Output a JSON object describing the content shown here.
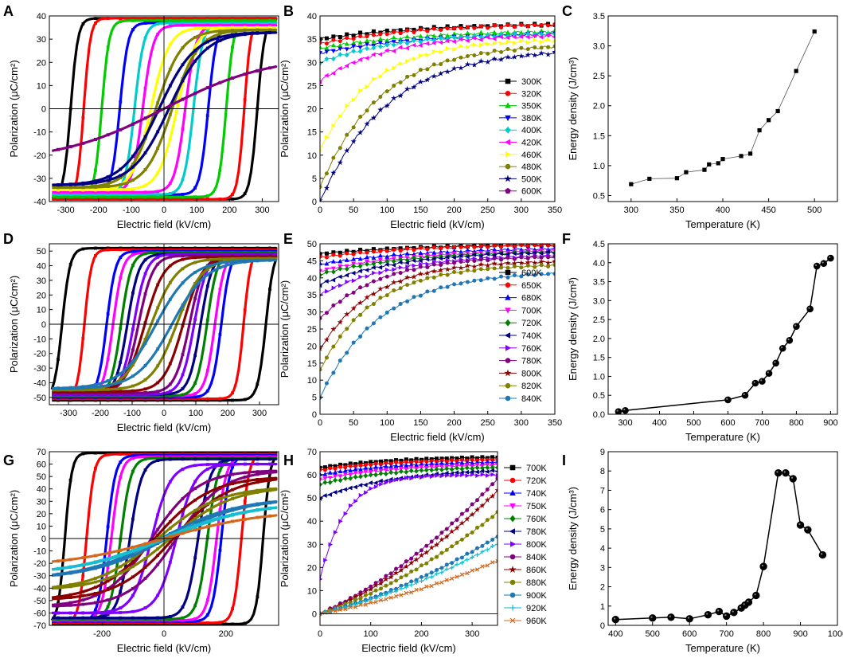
{
  "chart_data": [
    {
      "id": "A",
      "type": "line",
      "xlabel": "Electric field (kV/cm)",
      "ylabel": "Polarization (μC/cm²)",
      "xlim": [
        -350,
        350
      ],
      "ylim": [
        -40,
        40
      ],
      "xticks": [
        -300,
        -200,
        -100,
        0,
        100,
        200,
        300
      ],
      "yticks": [
        -40,
        -30,
        -20,
        -10,
        0,
        10,
        20,
        30,
        40
      ],
      "loops": [
        {
          "name": "300K",
          "color": "#000000",
          "Ec": 285,
          "Ps": 39,
          "Pr": 36,
          "k": 22
        },
        {
          "name": "320K",
          "color": "#ff0000",
          "Ec": 245,
          "Ps": 39,
          "Pr": 35,
          "k": 20
        },
        {
          "name": "350K",
          "color": "#00cc00",
          "Ec": 190,
          "Ps": 38,
          "Pr": 34,
          "k": 22
        },
        {
          "name": "380K",
          "color": "#0000ff",
          "Ec": 135,
          "Ps": 37,
          "Pr": 33,
          "k": 25
        },
        {
          "name": "400K",
          "color": "#00cccc",
          "Ec": 90,
          "Ps": 37,
          "Pr": 31,
          "k": 28
        },
        {
          "name": "420K",
          "color": "#ff00ff",
          "Ec": 65,
          "Ps": 36,
          "Pr": 28,
          "k": 32
        },
        {
          "name": "460K",
          "color": "#ffff00",
          "Ec": 40,
          "Ps": 35,
          "Pr": 20,
          "k": 55
        },
        {
          "name": "480K",
          "color": "#808000",
          "Ec": 25,
          "Ps": 34,
          "Pr": 12,
          "k": 80
        },
        {
          "name": "500K",
          "color": "#000080",
          "Ec": 15,
          "Ps": 33,
          "Pr": 6,
          "k": 110
        },
        {
          "name": "600K",
          "color": "#800080",
          "Ec": 0,
          "Ps": 23,
          "Pr": 0,
          "k": 320
        }
      ]
    },
    {
      "id": "B",
      "type": "line",
      "xlabel": "Electric field (kV/cm)",
      "ylabel": "Polarization (μC/cm²)",
      "xlim": [
        0,
        350
      ],
      "ylim": [
        0,
        40
      ],
      "xticks": [
        0,
        50,
        100,
        150,
        200,
        250,
        300,
        350
      ],
      "yticks": [
        0,
        5,
        10,
        15,
        20,
        25,
        30,
        35,
        40
      ],
      "series": [
        {
          "name": "300K",
          "color": "#000000",
          "marker": "square",
          "P0": 35,
          "Pmax": 38.5,
          "tau": 150
        },
        {
          "name": "320K",
          "color": "#ff0000",
          "marker": "circle",
          "P0": 34,
          "Pmax": 38.5,
          "tau": 150
        },
        {
          "name": "350K",
          "color": "#00cc00",
          "marker": "triangle-up",
          "P0": 33,
          "Pmax": 37,
          "tau": 150
        },
        {
          "name": "380K",
          "color": "#0000ff",
          "marker": "triangle-down",
          "P0": 32,
          "Pmax": 36.5,
          "tau": 150
        },
        {
          "name": "400K",
          "color": "#00cccc",
          "marker": "diamond",
          "P0": 30,
          "Pmax": 36.5,
          "tau": 120
        },
        {
          "name": "420K",
          "color": "#ff00ff",
          "marker": "triangle-left",
          "P0": 26,
          "Pmax": 36,
          "tau": 100
        },
        {
          "name": "460K",
          "color": "#ffff00",
          "marker": "triangle-right",
          "P0": 11,
          "Pmax": 35,
          "tau": 80
        },
        {
          "name": "480K",
          "color": "#808000",
          "marker": "circle",
          "P0": 3,
          "Pmax": 34,
          "tau": 90
        },
        {
          "name": "500K",
          "color": "#000080",
          "marker": "star",
          "P0": 0,
          "Pmax": 33,
          "tau": 100
        },
        {
          "name": "600K",
          "color": "#800080",
          "marker": "pentagon",
          "P0": null,
          "Pmax": null,
          "tau": null
        }
      ]
    },
    {
      "id": "C",
      "type": "line",
      "xlabel": "Temperature (K)",
      "ylabel": "Energy density (J/cm³)",
      "xlim": [
        275,
        525
      ],
      "ylim": [
        0.4,
        3.5
      ],
      "xticks": [
        300,
        350,
        400,
        450,
        500
      ],
      "yticks": [
        0.5,
        1.0,
        1.5,
        2.0,
        2.5,
        3.0,
        3.5
      ],
      "x": [
        300,
        320,
        350,
        360,
        380,
        385,
        395,
        400,
        420,
        430,
        440,
        450,
        460,
        480,
        500
      ],
      "y": [
        0.69,
        0.78,
        0.79,
        0.89,
        0.93,
        1.02,
        1.04,
        1.11,
        1.16,
        1.2,
        1.59,
        1.76,
        1.91,
        2.58,
        3.24
      ]
    },
    {
      "id": "D",
      "type": "line",
      "xlabel": "Electric field (kV/cm)",
      "ylabel": "Polarization (μC/cm²)",
      "xlim": [
        -360,
        360
      ],
      "ylim": [
        -55,
        55
      ],
      "xticks": [
        -300,
        -200,
        -100,
        0,
        100,
        200,
        300
      ],
      "yticks": [
        -50,
        -40,
        -30,
        -20,
        -10,
        0,
        10,
        20,
        30,
        40,
        50
      ],
      "loops": [
        {
          "name": "600K",
          "color": "#000000",
          "Ec": 320,
          "Ps": 52,
          "Pr": 46,
          "k": 25
        },
        {
          "name": "650K",
          "color": "#ff0000",
          "Ec": 250,
          "Ps": 51,
          "Pr": 45,
          "k": 22
        },
        {
          "name": "680K",
          "color": "#0000ff",
          "Ec": 180,
          "Ps": 50,
          "Pr": 43,
          "k": 28
        },
        {
          "name": "700K",
          "color": "#ff00ff",
          "Ec": 160,
          "Ps": 49,
          "Pr": 42,
          "k": 30
        },
        {
          "name": "720K",
          "color": "#008000",
          "Ec": 135,
          "Ps": 49,
          "Pr": 40,
          "k": 32
        },
        {
          "name": "740K",
          "color": "#000080",
          "Ec": 115,
          "Ps": 48,
          "Pr": 38,
          "k": 36
        },
        {
          "name": "760K",
          "color": "#8000ff",
          "Ec": 95,
          "Ps": 48,
          "Pr": 35,
          "k": 40
        },
        {
          "name": "780K",
          "color": "#800080",
          "Ec": 80,
          "Ps": 47,
          "Pr": 32,
          "k": 45
        },
        {
          "name": "800K",
          "color": "#8b0000",
          "Ec": 60,
          "Ps": 46,
          "Pr": 25,
          "k": 60
        },
        {
          "name": "820K",
          "color": "#808000",
          "Ec": 40,
          "Ps": 45,
          "Pr": 15,
          "k": 80
        },
        {
          "name": "840K",
          "color": "#1f77b4",
          "Ec": 25,
          "Ps": 44,
          "Pr": 8,
          "k": 110
        }
      ]
    },
    {
      "id": "E",
      "type": "line",
      "xlabel": "Electric field (kV/cm)",
      "ylabel": "Polarization (μC/cm²)",
      "xlim": [
        0,
        350
      ],
      "ylim": [
        0,
        50
      ],
      "xticks": [
        0,
        50,
        100,
        150,
        200,
        250,
        300,
        350
      ],
      "yticks": [
        0,
        5,
        10,
        15,
        20,
        25,
        30,
        35,
        40,
        45,
        50
      ],
      "series": [
        {
          "name": "600K",
          "color": "#000000",
          "marker": "square",
          "P0": 47,
          "Pmax": 50,
          "tau": 150
        },
        {
          "name": "650K",
          "color": "#ff0000",
          "marker": "circle",
          "P0": 46,
          "Pmax": 50,
          "tau": 150
        },
        {
          "name": "680K",
          "color": "#0000ff",
          "marker": "triangle-up",
          "P0": 44,
          "Pmax": 49,
          "tau": 150
        },
        {
          "name": "700K",
          "color": "#ff00ff",
          "marker": "triangle-down",
          "P0": 42,
          "Pmax": 48.5,
          "tau": 140
        },
        {
          "name": "720K",
          "color": "#008000",
          "marker": "diamond",
          "P0": 41,
          "Pmax": 48,
          "tau": 130
        },
        {
          "name": "740K",
          "color": "#000080",
          "marker": "triangle-left",
          "P0": 38,
          "Pmax": 48,
          "tau": 120
        },
        {
          "name": "760K",
          "color": "#8000ff",
          "marker": "triangle-right",
          "P0": 35,
          "Pmax": 47,
          "tau": 110
        },
        {
          "name": "780K",
          "color": "#800080",
          "marker": "circle",
          "P0": 28,
          "Pmax": 46.5,
          "tau": 90
        },
        {
          "name": "800K",
          "color": "#8b0000",
          "marker": "star",
          "P0": 19,
          "Pmax": 45,
          "tau": 80
        },
        {
          "name": "820K",
          "color": "#808000",
          "marker": "circle",
          "P0": 13,
          "Pmax": 44,
          "tau": 80
        },
        {
          "name": "840K",
          "color": "#1f77b4",
          "marker": "circle",
          "P0": 5,
          "Pmax": 42,
          "tau": 90
        }
      ]
    },
    {
      "id": "F",
      "type": "line",
      "xlabel": "Temperature (K)",
      "ylabel": "Energy density (J/cm³)",
      "xlim": [
        250,
        920
      ],
      "ylim": [
        0,
        4.5
      ],
      "xticks": [
        300,
        400,
        500,
        600,
        700,
        800,
        900
      ],
      "yticks": [
        0.0,
        0.5,
        1.0,
        1.5,
        2.0,
        2.5,
        3.0,
        3.5,
        4.0,
        4.5
      ],
      "x": [
        280,
        300,
        600,
        650,
        680,
        700,
        720,
        740,
        760,
        780,
        800,
        840,
        860,
        880,
        900
      ],
      "y": [
        0.07,
        0.1,
        0.38,
        0.5,
        0.82,
        0.87,
        1.08,
        1.35,
        1.74,
        1.95,
        2.32,
        2.78,
        3.91,
        3.98,
        4.12
      ]
    },
    {
      "id": "G",
      "type": "line",
      "xlabel": "Electric field (kV/cm)",
      "ylabel": "Polarization (μC/cm²)",
      "xlim": [
        -370,
        370
      ],
      "ylim": [
        -70,
        70
      ],
      "xticks": [
        -200,
        0,
        200
      ],
      "yticks": [
        -70,
        -60,
        -50,
        -40,
        -30,
        -20,
        -10,
        0,
        10,
        20,
        30,
        40,
        50,
        60,
        70
      ],
      "loops": [
        {
          "name": "700K",
          "color": "#000000",
          "Ec": 320,
          "Ps": 69,
          "Pr": 63,
          "k": 22
        },
        {
          "name": "720K",
          "color": "#ff0000",
          "Ec": 250,
          "Ps": 68,
          "Pr": 60,
          "k": 24
        },
        {
          "name": "740K",
          "color": "#0000ff",
          "Ec": 185,
          "Ps": 67,
          "Pr": 58,
          "k": 28
        },
        {
          "name": "750K",
          "color": "#ff00ff",
          "Ec": 170,
          "Ps": 66,
          "Pr": 55,
          "k": 30
        },
        {
          "name": "760K",
          "color": "#008000",
          "Ec": 140,
          "Ps": 65,
          "Pr": 52,
          "k": 33
        },
        {
          "name": "780K",
          "color": "#000080",
          "Ec": 110,
          "Ps": 64,
          "Pr": 48,
          "k": 38
        },
        {
          "name": "800K",
          "color": "#8000ff",
          "Ec": 40,
          "Ps": 60,
          "Pr": 30,
          "k": 60
        },
        {
          "name": "840K",
          "color": "#800080",
          "Ec": 40,
          "Ps": 55,
          "Pr": 15,
          "k": 150
        },
        {
          "name": "860K",
          "color": "#8b0000",
          "Ec": 30,
          "Ps": 50,
          "Pr": 10,
          "k": 180
        },
        {
          "name": "880K",
          "color": "#808000",
          "Ec": 20,
          "Ps": 42,
          "Pr": 6,
          "k": 200
        },
        {
          "name": "900K",
          "color": "#1f77b4",
          "Ec": 10,
          "Ps": 33,
          "Pr": 3,
          "k": 250
        },
        {
          "name": "920K",
          "color": "#17becf",
          "Ec": 5,
          "Ps": 29,
          "Pr": 2,
          "k": 280
        },
        {
          "name": "960K",
          "color": "#d2691e",
          "Ec": 0,
          "Ps": 23,
          "Pr": 0,
          "k": 320
        }
      ]
    },
    {
      "id": "H",
      "type": "line",
      "xlabel": "Electric field (kV/cm)",
      "ylabel": "Polarization (μC/cm²)",
      "xlim": [
        0,
        350
      ],
      "ylim": [
        -5,
        70
      ],
      "xticks": [
        0,
        100,
        200,
        300
      ],
      "yticks": [
        0,
        10,
        20,
        30,
        40,
        50,
        60,
        70
      ],
      "series": [
        {
          "name": "700K",
          "color": "#000000",
          "marker": "square",
          "P0": 63,
          "Pmax": 68,
          "tau": 150
        },
        {
          "name": "720K",
          "color": "#ff0000",
          "marker": "circle",
          "P0": 62,
          "Pmax": 67,
          "tau": 150
        },
        {
          "name": "740K",
          "color": "#0000ff",
          "marker": "triangle-up",
          "P0": 60,
          "Pmax": 66,
          "tau": 150
        },
        {
          "name": "750K",
          "color": "#ff00ff",
          "marker": "triangle-down",
          "P0": 58,
          "Pmax": 65,
          "tau": 150
        },
        {
          "name": "760K",
          "color": "#008000",
          "marker": "diamond",
          "P0": 56,
          "Pmax": 64,
          "tau": 150
        },
        {
          "name": "780K",
          "color": "#000080",
          "marker": "triangle-left",
          "P0": 50,
          "Pmax": 63,
          "tau": 150
        },
        {
          "name": "800K",
          "color": "#8000ff",
          "marker": "triangle-right",
          "P0": 15,
          "Pmax": 60,
          "tau": 50
        },
        {
          "name": "840K",
          "color": "#800080",
          "marker": "circle",
          "P0": 0,
          "Pmax": 56,
          "tau": null
        },
        {
          "name": "860K",
          "color": "#8b0000",
          "marker": "star",
          "P0": 0,
          "Pmax": 51,
          "tau": null
        },
        {
          "name": "880K",
          "color": "#808000",
          "marker": "circle",
          "P0": 0,
          "Pmax": 42,
          "tau": null
        },
        {
          "name": "900K",
          "color": "#1f77b4",
          "marker": "circle",
          "P0": 0,
          "Pmax": 32,
          "tau": null
        },
        {
          "name": "920K",
          "color": "#17becf",
          "marker": "plus",
          "P0": 0,
          "Pmax": 29,
          "tau": null
        },
        {
          "name": "960K",
          "color": "#d2691e",
          "marker": "cross",
          "P0": 0,
          "Pmax": 22,
          "tau": null
        }
      ]
    },
    {
      "id": "I",
      "type": "line",
      "xlabel": "Temperature (K)",
      "ylabel": "Energy density (J/cm³)",
      "xlim": [
        380,
        1000
      ],
      "ylim": [
        0,
        9
      ],
      "xticks": [
        400,
        500,
        600,
        700,
        800,
        900,
        1000
      ],
      "yticks": [
        0,
        1,
        2,
        3,
        4,
        5,
        6,
        7,
        8,
        9
      ],
      "x": [
        400,
        500,
        550,
        600,
        650,
        680,
        700,
        720,
        740,
        750,
        760,
        780,
        800,
        840,
        860,
        880,
        900,
        920,
        960
      ],
      "y": [
        0.3,
        0.38,
        0.42,
        0.34,
        0.55,
        0.72,
        0.48,
        0.67,
        0.9,
        1.05,
        1.2,
        1.55,
        3.05,
        7.9,
        7.9,
        7.6,
        5.2,
        4.95,
        3.65
      ]
    }
  ]
}
